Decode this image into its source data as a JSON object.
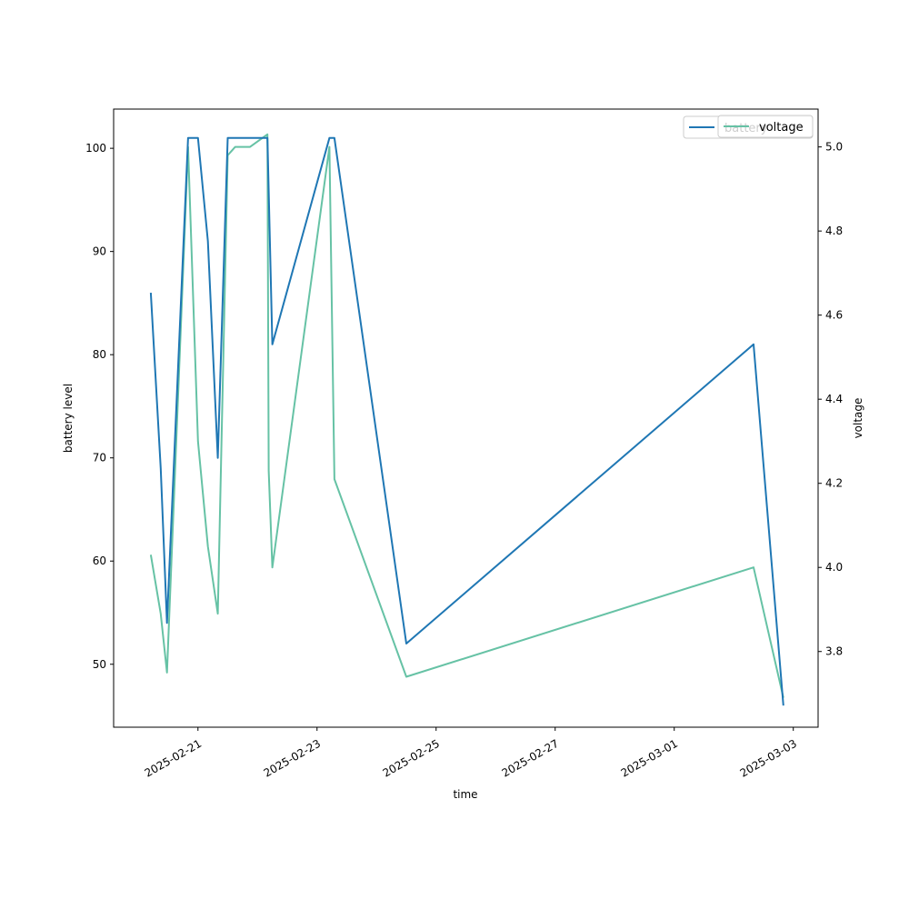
{
  "chart_data": {
    "type": "line",
    "xlabel": "time",
    "ylabel_left": "battery level",
    "ylabel_right": "voltage",
    "x_range": [
      "2025-02-19 14:00",
      "2025-03-03 10:00"
    ],
    "ylim_left": [
      43.9,
      103.8
    ],
    "ylim_right": [
      3.62,
      5.09
    ],
    "x_ticks": [
      {
        "date": "2025-02-21",
        "label": "2025-02-21"
      },
      {
        "date": "2025-02-23",
        "label": "2025-02-23"
      },
      {
        "date": "2025-02-25",
        "label": "2025-02-25"
      },
      {
        "date": "2025-02-27",
        "label": "2025-02-27"
      },
      {
        "date": "2025-03-01",
        "label": "2025-03-01"
      },
      {
        "date": "2025-03-03",
        "label": "2025-03-03"
      }
    ],
    "y_ticks_left": [
      50,
      60,
      70,
      80,
      90,
      100
    ],
    "y_ticks_right": [
      3.8,
      4.0,
      4.2,
      4.4,
      4.6,
      4.8,
      5.0
    ],
    "series": [
      {
        "name": "battery",
        "axis": "left",
        "color": "#1f77b4",
        "points": [
          [
            "2025-02-20 05:00",
            86
          ],
          [
            "2025-02-20 09:00",
            69
          ],
          [
            "2025-02-20 11:30",
            54
          ],
          [
            "2025-02-20 20:00",
            101
          ],
          [
            "2025-02-21 00:00",
            101
          ],
          [
            "2025-02-21 04:00",
            91
          ],
          [
            "2025-02-21 08:00",
            70
          ],
          [
            "2025-02-21 12:00",
            101
          ],
          [
            "2025-02-22 04:00",
            101
          ],
          [
            "2025-02-22 06:00",
            81
          ],
          [
            "2025-02-23 05:00",
            101
          ],
          [
            "2025-02-23 07:00",
            101
          ],
          [
            "2025-02-24 12:00",
            52
          ],
          [
            "2025-03-02 08:00",
            81
          ],
          [
            "2025-03-02 20:00",
            46
          ]
        ]
      },
      {
        "name": "voltage",
        "axis": "right",
        "color": "#66c2a5",
        "points": [
          [
            "2025-02-20 05:00",
            4.03
          ],
          [
            "2025-02-20 09:00",
            3.89
          ],
          [
            "2025-02-20 11:30",
            3.75
          ],
          [
            "2025-02-20 20:00",
            5.0
          ],
          [
            "2025-02-21 00:00",
            4.3
          ],
          [
            "2025-02-21 04:00",
            4.05
          ],
          [
            "2025-02-21 08:00",
            3.89
          ],
          [
            "2025-02-21 12:00",
            4.98
          ],
          [
            "2025-02-21 15:00",
            5.0
          ],
          [
            "2025-02-21 21:00",
            5.0
          ],
          [
            "2025-02-22 04:00",
            5.03
          ],
          [
            "2025-02-22 04:30",
            4.23
          ],
          [
            "2025-02-22 06:00",
            4.0
          ],
          [
            "2025-02-23 05:00",
            5.0
          ],
          [
            "2025-02-23 07:00",
            4.21
          ],
          [
            "2025-02-24 12:00",
            3.74
          ],
          [
            "2025-03-02 08:00",
            4.0
          ],
          [
            "2025-03-02 20:00",
            3.69
          ]
        ]
      }
    ],
    "legend": {
      "placement": "top-right",
      "entries": [
        {
          "name": "battery",
          "color": "#1f77b4"
        },
        {
          "name": "voltage",
          "color": "#66c2a5"
        }
      ]
    },
    "grid": false
  }
}
